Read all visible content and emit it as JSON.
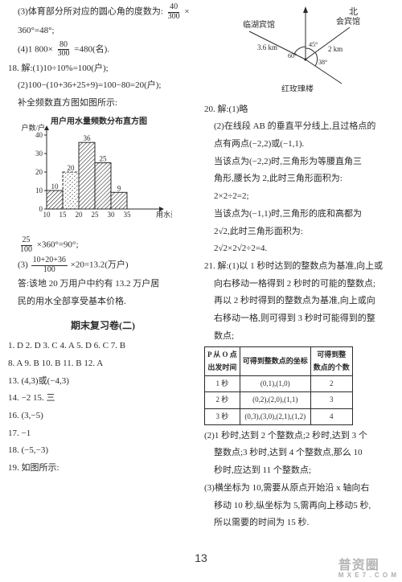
{
  "left": {
    "l1a": "(3)体育部分所对应的圆心角的度数为:",
    "frac1": {
      "num": "40",
      "den": "300"
    },
    "l1b": "×",
    "l2": "360°=48°;",
    "l3a": "(4)1 800×",
    "frac2": {
      "num": "80",
      "den": "300"
    },
    "l3b": "=480(名).",
    "l4": "18. 解:(1)10÷10%=100(户);",
    "l5": "(2)100−(10+36+25+9)=100−80=20(户);",
    "l6": "补全频数直方图如图所示:",
    "chart": {
      "title": "用户用水量频数分布直方图",
      "ylabel": "户数/户",
      "xlabel": "用水量/吨",
      "bars": [
        {
          "xLabel": "10",
          "h": 10
        },
        {
          "xLabel": "15",
          "h": 20
        },
        {
          "xLabel": "20",
          "h": 36
        },
        {
          "xLabel": "25",
          "h": 25
        },
        {
          "xLabel": "30",
          "h": 9
        },
        {
          "xLabel": "35",
          "h": 0
        }
      ],
      "barLabels": [
        "10",
        "20",
        "36",
        "25",
        "9",
        ""
      ],
      "yticks": [
        0,
        10,
        20,
        30,
        40
      ],
      "barColor": "#ffffff",
      "hatchColor": "#2a2a2a",
      "dashedBar": 1,
      "axisColor": "#2a2a2a"
    },
    "frac3": {
      "num": "25",
      "den": "100"
    },
    "l7": "×360°=90°;",
    "l8a": "(3)",
    "frac4": {
      "num": "10+20+36",
      "den": "100"
    },
    "l8b": "×20=13.2(万户)",
    "l9": "答:该地 20 万用户中约有 13.2 万户居",
    "l10": "民的用水全部享受基本价格.",
    "sectionTitle": "期末复习卷(二)",
    "mc1": "1. D   2. D   3. C   4. A   5. D   6. C   7. B",
    "mc2": "8. A   9. B   10. B   11. B   12. A",
    "l13": "13. (4,3)或(−4,3)",
    "l14": "14. −2     15. 三",
    "l16": "16. (3,−5)",
    "l17": "17. −1",
    "l18": "18. (−5,−3)",
    "l19": "19. 如图所示:"
  },
  "right": {
    "map": {
      "labels": {
        "north": "北",
        "hotel1": "临湖宾馆",
        "hotel2": "会宾馆",
        "tower": "红玫瑰楼"
      },
      "dist1": "3.6 km",
      "dist2": "2 km",
      "angles": [
        "60°",
        "45°",
        "38°"
      ],
      "lineColor": "#2a2a2a"
    },
    "l20": "20. 解:(1)略",
    "l21": "(2)在线段 AB 的垂直平分线上,且过格点的",
    "l22": "点有两点(−2,2)或(−1,1).",
    "l23": "当该点为(−2,2)时,三角形为等腰直角三",
    "l24": "角形,腰长为 2,此时三角形面积为:",
    "l25": "2×2÷2=2;",
    "l26": "当该点为(−1,1)时,三角形的底和高都为",
    "l27": "2√2,此时三角形面积为:",
    "l28": "2√2×2√2÷2=4.",
    "l29": "21. 解:(1)以 1 秒时达到的整数点为基准,向上或",
    "l30": "向右移动一格得到 2 秒时的可能的整数点;",
    "l31": "再以 2 秒时得到的整数点为基准,向上或向",
    "l32": "右移动一格,则可得到 3 秒时可能得到的整",
    "l33": "数点;",
    "table": {
      "headers": [
        "P 从 O 点\n出发时间",
        "可得到整数点的坐标",
        "可得到整\n数点的个数"
      ],
      "rows": [
        [
          "1 秒",
          "(0,1),(1,0)",
          "2"
        ],
        [
          "2 秒",
          "(0,2),(2,0),(1,1)",
          "3"
        ],
        [
          "3 秒",
          "(0,3),(3,0),(2,1),(1,2)",
          "4"
        ]
      ]
    },
    "l34": "(2)1 秒时,达到 2 个整数点;2 秒时,达到 3 个",
    "l35": "整数点;3 秒时,达到 4 个整数点,那么 10",
    "l36": "秒时,应达到 11 个整数点;",
    "l37": "(3)横坐标为 10,需要从原点开始沿 x 轴向右",
    "l38": "移动 10 秒,纵坐标为 5,需再向上移动5 秒,",
    "l39": "所以需要的时间为 15 秒."
  },
  "pagenum": "13",
  "watermark": {
    "main": "普资圈",
    "sub": "M X E 7 . C O M"
  }
}
